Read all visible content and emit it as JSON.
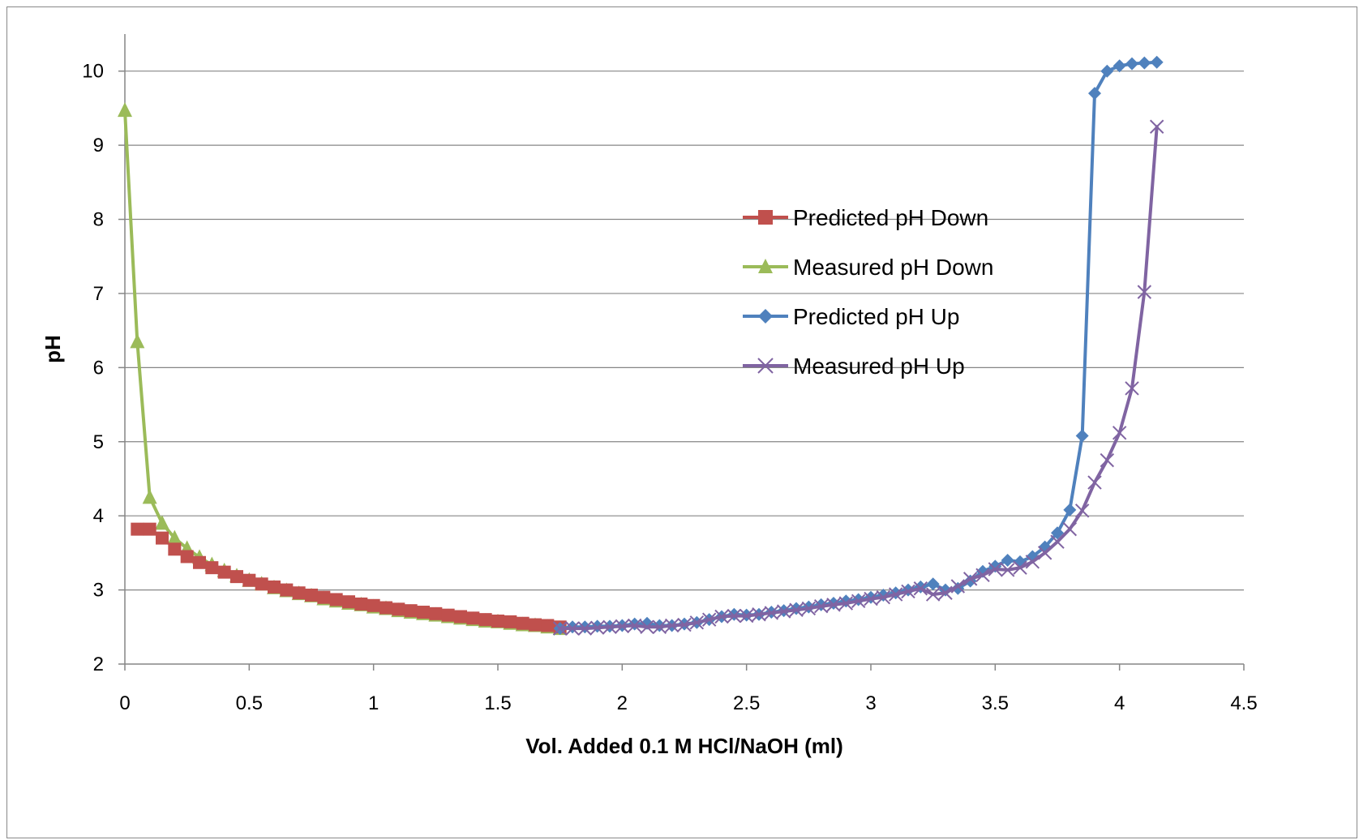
{
  "chart_data": {
    "type": "line",
    "title": "",
    "xlabel": "Vol. Added 0.1 M HCl/NaOH (ml)",
    "ylabel": "pH",
    "xlim": [
      0,
      4.5
    ],
    "ylim": [
      2,
      10.5
    ],
    "xticks": [
      0,
      0.5,
      1,
      1.5,
      2,
      2.5,
      3,
      3.5,
      4,
      4.5
    ],
    "xtick_labels": [
      "0",
      "0.5",
      "1",
      "1.5",
      "2",
      "2.5",
      "3",
      "3.5",
      "4",
      "4.5"
    ],
    "yticks": [
      2,
      3,
      4,
      5,
      6,
      7,
      8,
      9,
      10
    ],
    "ytick_labels": [
      "2",
      "3",
      "4",
      "5",
      "6",
      "7",
      "8",
      "9",
      "10"
    ],
    "grid": "horizontal",
    "legend_position": "center-right",
    "series": [
      {
        "name": "Predicted pH Down",
        "color": "#c0504d",
        "marker": "square",
        "line": false,
        "points": [
          [
            0.05,
            3.82
          ],
          [
            0.1,
            3.82
          ],
          [
            0.15,
            3.7
          ],
          [
            0.2,
            3.55
          ],
          [
            0.25,
            3.45
          ],
          [
            0.3,
            3.37
          ],
          [
            0.35,
            3.3
          ],
          [
            0.4,
            3.24
          ],
          [
            0.45,
            3.18
          ],
          [
            0.5,
            3.13
          ],
          [
            0.55,
            3.08
          ],
          [
            0.6,
            3.04
          ],
          [
            0.65,
            3.0
          ],
          [
            0.7,
            2.96
          ],
          [
            0.75,
            2.93
          ],
          [
            0.8,
            2.9
          ],
          [
            0.85,
            2.87
          ],
          [
            0.9,
            2.84
          ],
          [
            0.95,
            2.81
          ],
          [
            1.0,
            2.79
          ],
          [
            1.05,
            2.76
          ],
          [
            1.1,
            2.74
          ],
          [
            1.15,
            2.72
          ],
          [
            1.2,
            2.7
          ],
          [
            1.25,
            2.68
          ],
          [
            1.3,
            2.66
          ],
          [
            1.35,
            2.64
          ],
          [
            1.4,
            2.62
          ],
          [
            1.45,
            2.6
          ],
          [
            1.5,
            2.58
          ],
          [
            1.55,
            2.57
          ],
          [
            1.6,
            2.55
          ],
          [
            1.65,
            2.53
          ],
          [
            1.7,
            2.52
          ],
          [
            1.75,
            2.5
          ]
        ]
      },
      {
        "name": "Measured pH Down",
        "color": "#9bbb59",
        "marker": "triangle",
        "line": true,
        "points": [
          [
            0,
            9.47
          ],
          [
            0.05,
            6.35
          ],
          [
            0.1,
            4.25
          ],
          [
            0.15,
            3.9
          ],
          [
            0.2,
            3.7
          ],
          [
            0.25,
            3.56
          ],
          [
            0.3,
            3.44
          ],
          [
            0.35,
            3.34
          ],
          [
            0.4,
            3.26
          ],
          [
            0.45,
            3.19
          ],
          [
            0.5,
            3.13
          ],
          [
            0.55,
            3.08
          ],
          [
            0.6,
            3.03
          ],
          [
            0.65,
            2.99
          ],
          [
            0.7,
            2.95
          ],
          [
            0.75,
            2.92
          ],
          [
            0.8,
            2.88
          ],
          [
            0.85,
            2.85
          ],
          [
            0.9,
            2.82
          ],
          [
            0.95,
            2.8
          ],
          [
            1.0,
            2.77
          ],
          [
            1.05,
            2.75
          ],
          [
            1.1,
            2.72
          ],
          [
            1.15,
            2.7
          ],
          [
            1.2,
            2.68
          ],
          [
            1.25,
            2.66
          ],
          [
            1.3,
            2.64
          ],
          [
            1.35,
            2.62
          ],
          [
            1.4,
            2.6
          ],
          [
            1.45,
            2.58
          ],
          [
            1.5,
            2.57
          ],
          [
            1.55,
            2.55
          ],
          [
            1.6,
            2.53
          ],
          [
            1.65,
            2.52
          ],
          [
            1.7,
            2.5
          ],
          [
            1.75,
            2.48
          ]
        ]
      },
      {
        "name": "Predicted pH Up",
        "color": "#4f81bd",
        "marker": "diamond",
        "line": true,
        "points": [
          [
            1.75,
            2.48
          ],
          [
            1.8,
            2.5
          ],
          [
            1.85,
            2.5
          ],
          [
            1.9,
            2.51
          ],
          [
            1.95,
            2.51
          ],
          [
            2.0,
            2.52
          ],
          [
            2.05,
            2.54
          ],
          [
            2.1,
            2.55
          ],
          [
            2.15,
            2.52
          ],
          [
            2.2,
            2.52
          ],
          [
            2.25,
            2.54
          ],
          [
            2.3,
            2.56
          ],
          [
            2.35,
            2.6
          ],
          [
            2.4,
            2.64
          ],
          [
            2.45,
            2.67
          ],
          [
            2.5,
            2.66
          ],
          [
            2.55,
            2.67
          ],
          [
            2.6,
            2.7
          ],
          [
            2.65,
            2.72
          ],
          [
            2.7,
            2.75
          ],
          [
            2.75,
            2.77
          ],
          [
            2.8,
            2.8
          ],
          [
            2.85,
            2.82
          ],
          [
            2.9,
            2.85
          ],
          [
            2.95,
            2.87
          ],
          [
            3.0,
            2.9
          ],
          [
            3.05,
            2.93
          ],
          [
            3.1,
            2.96
          ],
          [
            3.15,
            3.0
          ],
          [
            3.2,
            3.04
          ],
          [
            3.25,
            3.08
          ],
          [
            3.3,
            3.0
          ],
          [
            3.35,
            3.02
          ],
          [
            3.4,
            3.12
          ],
          [
            3.45,
            3.25
          ],
          [
            3.5,
            3.32
          ],
          [
            3.55,
            3.4
          ],
          [
            3.6,
            3.38
          ],
          [
            3.65,
            3.45
          ],
          [
            3.7,
            3.58
          ],
          [
            3.75,
            3.77
          ],
          [
            3.8,
            4.08
          ],
          [
            3.85,
            5.08
          ],
          [
            3.9,
            9.7
          ],
          [
            3.95,
            10.0
          ],
          [
            4.0,
            10.07
          ],
          [
            4.05,
            10.1
          ],
          [
            4.1,
            10.11
          ],
          [
            4.15,
            10.12
          ]
        ]
      },
      {
        "name": "Measured pH Up",
        "color": "#8064a2",
        "marker": "x",
        "line": true,
        "points": [
          [
            1.75,
            2.48
          ],
          [
            1.8,
            2.48
          ],
          [
            1.85,
            2.48
          ],
          [
            1.9,
            2.49
          ],
          [
            1.95,
            2.5
          ],
          [
            2.0,
            2.51
          ],
          [
            2.05,
            2.52
          ],
          [
            2.1,
            2.5
          ],
          [
            2.15,
            2.5
          ],
          [
            2.2,
            2.52
          ],
          [
            2.25,
            2.53
          ],
          [
            2.3,
            2.56
          ],
          [
            2.35,
            2.6
          ],
          [
            2.4,
            2.64
          ],
          [
            2.45,
            2.65
          ],
          [
            2.5,
            2.65
          ],
          [
            2.55,
            2.67
          ],
          [
            2.6,
            2.69
          ],
          [
            2.65,
            2.71
          ],
          [
            2.7,
            2.73
          ],
          [
            2.75,
            2.75
          ],
          [
            2.8,
            2.78
          ],
          [
            2.85,
            2.8
          ],
          [
            2.9,
            2.82
          ],
          [
            2.95,
            2.85
          ],
          [
            3.0,
            2.88
          ],
          [
            3.05,
            2.9
          ],
          [
            3.1,
            2.94
          ],
          [
            3.15,
            2.98
          ],
          [
            3.2,
            3.02
          ],
          [
            3.25,
            2.94
          ],
          [
            3.3,
            2.96
          ],
          [
            3.35,
            3.05
          ],
          [
            3.4,
            3.15
          ],
          [
            3.45,
            3.2
          ],
          [
            3.5,
            3.28
          ],
          [
            3.55,
            3.27
          ],
          [
            3.6,
            3.3
          ],
          [
            3.65,
            3.38
          ],
          [
            3.7,
            3.5
          ],
          [
            3.75,
            3.65
          ],
          [
            3.8,
            3.82
          ],
          [
            3.85,
            4.07
          ],
          [
            3.9,
            4.45
          ],
          [
            3.95,
            4.75
          ],
          [
            4.0,
            5.12
          ],
          [
            4.05,
            5.72
          ],
          [
            4.1,
            7.02
          ],
          [
            4.15,
            9.25
          ]
        ]
      }
    ]
  }
}
